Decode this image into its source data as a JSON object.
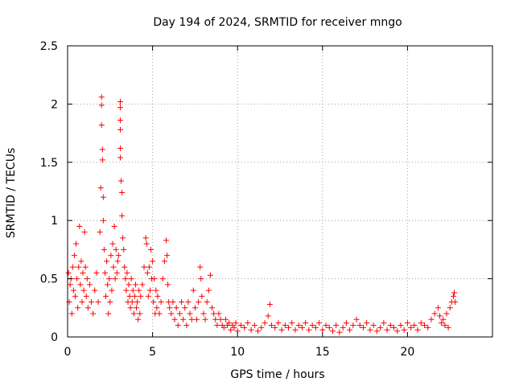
{
  "chart_data": {
    "type": "scatter",
    "title": "Day 194 of 2024, SRMTID for receiver mngo",
    "xlabel": "GPS time / hours",
    "ylabel": "SRMTID / TECUs",
    "xlim": [
      0,
      25
    ],
    "ylim": [
      0,
      2.5
    ],
    "xticks": [
      0,
      5,
      10,
      15,
      20
    ],
    "xtick_labels": [
      "0",
      "5",
      "10",
      "15",
      "20"
    ],
    "yticks": [
      0,
      0.5,
      1,
      1.5,
      2,
      2.5
    ],
    "ytick_labels": [
      "0",
      "0.5",
      "1",
      "1.5",
      "2",
      "2.5"
    ],
    "grid": true,
    "marker": "+",
    "color": "#ff0000",
    "series": [
      {
        "name": "SRMTID",
        "points": [
          [
            0.05,
            0.55
          ],
          [
            0.1,
            0.3
          ],
          [
            0.15,
            0.45
          ],
          [
            0.2,
            0.5
          ],
          [
            0.25,
            0.2
          ],
          [
            0.3,
            0.6
          ],
          [
            0.35,
            0.4
          ],
          [
            0.4,
            0.7
          ],
          [
            0.45,
            0.35
          ],
          [
            0.5,
            0.8
          ],
          [
            0.55,
            0.5
          ],
          [
            0.6,
            0.25
          ],
          [
            0.65,
            0.6
          ],
          [
            0.7,
            0.95
          ],
          [
            0.75,
            0.45
          ],
          [
            0.8,
            0.65
          ],
          [
            0.85,
            0.3
          ],
          [
            0.9,
            0.55
          ],
          [
            0.95,
            0.4
          ],
          [
            1.0,
            0.9
          ],
          [
            1.05,
            0.6
          ],
          [
            1.1,
            0.35
          ],
          [
            1.15,
            0.5
          ],
          [
            1.2,
            0.25
          ],
          [
            1.3,
            0.45
          ],
          [
            1.4,
            0.3
          ],
          [
            1.5,
            0.2
          ],
          [
            1.6,
            0.4
          ],
          [
            1.7,
            0.55
          ],
          [
            1.8,
            0.3
          ],
          [
            1.9,
            0.9
          ],
          [
            1.95,
            1.28
          ],
          [
            2.0,
            1.82
          ],
          [
            2.0,
            2.06
          ],
          [
            2.0,
            1.99
          ],
          [
            2.05,
            1.61
          ],
          [
            2.05,
            1.52
          ],
          [
            2.1,
            1.2
          ],
          [
            2.1,
            1.0
          ],
          [
            2.15,
            0.75
          ],
          [
            2.2,
            0.55
          ],
          [
            2.25,
            0.35
          ],
          [
            2.3,
            0.65
          ],
          [
            2.35,
            0.45
          ],
          [
            2.4,
            0.2
          ],
          [
            2.45,
            0.5
          ],
          [
            2.5,
            0.3
          ],
          [
            2.55,
            0.7
          ],
          [
            2.6,
            0.4
          ],
          [
            2.65,
            0.8
          ],
          [
            2.7,
            0.6
          ],
          [
            2.75,
            0.95
          ],
          [
            2.8,
            0.5
          ],
          [
            2.85,
            0.75
          ],
          [
            2.9,
            0.55
          ],
          [
            2.95,
            0.65
          ],
          [
            3.0,
            0.7
          ],
          [
            3.1,
            2.02
          ],
          [
            3.1,
            1.97
          ],
          [
            3.1,
            1.86
          ],
          [
            3.1,
            1.78
          ],
          [
            3.1,
            1.62
          ],
          [
            3.1,
            1.54
          ],
          [
            3.15,
            1.34
          ],
          [
            3.2,
            1.24
          ],
          [
            3.2,
            1.04
          ],
          [
            3.25,
            0.85
          ],
          [
            3.3,
            0.75
          ],
          [
            3.35,
            0.6
          ],
          [
            3.4,
            0.5
          ],
          [
            3.45,
            0.4
          ],
          [
            3.5,
            0.55
          ],
          [
            3.55,
            0.3
          ],
          [
            3.6,
            0.45
          ],
          [
            3.65,
            0.35
          ],
          [
            3.7,
            0.25
          ],
          [
            3.75,
            0.5
          ],
          [
            3.8,
            0.3
          ],
          [
            3.85,
            0.4
          ],
          [
            3.9,
            0.2
          ],
          [
            3.95,
            0.35
          ],
          [
            4.0,
            0.45
          ],
          [
            4.05,
            0.25
          ],
          [
            4.1,
            0.3
          ],
          [
            4.15,
            0.15
          ],
          [
            4.2,
            0.4
          ],
          [
            4.25,
            0.2
          ],
          [
            4.3,
            0.35
          ],
          [
            4.4,
            0.45
          ],
          [
            4.5,
            0.6
          ],
          [
            4.6,
            0.85
          ],
          [
            4.65,
            0.8
          ],
          [
            4.7,
            0.55
          ],
          [
            4.75,
            0.35
          ],
          [
            4.8,
            0.6
          ],
          [
            4.85,
            0.4
          ],
          [
            4.9,
            0.75
          ],
          [
            4.95,
            0.5
          ],
          [
            5.0,
            0.65
          ],
          [
            5.05,
            0.3
          ],
          [
            5.1,
            0.5
          ],
          [
            5.15,
            0.2
          ],
          [
            5.2,
            0.4
          ],
          [
            5.25,
            0.25
          ],
          [
            5.3,
            0.35
          ],
          [
            5.4,
            0.2
          ],
          [
            5.5,
            0.3
          ],
          [
            5.6,
            0.5
          ],
          [
            5.7,
            0.65
          ],
          [
            5.8,
            0.83
          ],
          [
            5.85,
            0.7
          ],
          [
            5.9,
            0.45
          ],
          [
            5.95,
            0.3
          ],
          [
            6.0,
            0.25
          ],
          [
            6.1,
            0.2
          ],
          [
            6.2,
            0.3
          ],
          [
            6.3,
            0.15
          ],
          [
            6.4,
            0.25
          ],
          [
            6.5,
            0.1
          ],
          [
            6.6,
            0.2
          ],
          [
            6.7,
            0.3
          ],
          [
            6.8,
            0.15
          ],
          [
            6.9,
            0.25
          ],
          [
            7.0,
            0.1
          ],
          [
            7.1,
            0.3
          ],
          [
            7.2,
            0.2
          ],
          [
            7.3,
            0.15
          ],
          [
            7.4,
            0.4
          ],
          [
            7.5,
            0.25
          ],
          [
            7.6,
            0.15
          ],
          [
            7.7,
            0.3
          ],
          [
            7.8,
            0.6
          ],
          [
            7.85,
            0.5
          ],
          [
            7.9,
            0.35
          ],
          [
            8.0,
            0.2
          ],
          [
            8.1,
            0.15
          ],
          [
            8.2,
            0.3
          ],
          [
            8.3,
            0.4
          ],
          [
            8.4,
            0.53
          ],
          [
            8.5,
            0.25
          ],
          [
            8.6,
            0.2
          ],
          [
            8.7,
            0.15
          ],
          [
            8.8,
            0.1
          ],
          [
            8.9,
            0.2
          ],
          [
            9.0,
            0.15
          ],
          [
            9.1,
            0.1
          ],
          [
            9.2,
            0.08
          ],
          [
            9.3,
            0.15
          ],
          [
            9.4,
            0.1
          ],
          [
            9.5,
            0.12
          ],
          [
            9.6,
            0.06
          ],
          [
            9.7,
            0.1
          ],
          [
            9.8,
            0.08
          ],
          [
            9.9,
            0.12
          ],
          [
            10.0,
            0.05
          ],
          [
            10.2,
            0.1
          ],
          [
            10.4,
            0.08
          ],
          [
            10.6,
            0.12
          ],
          [
            10.8,
            0.06
          ],
          [
            11.0,
            0.1
          ],
          [
            11.2,
            0.05
          ],
          [
            11.4,
            0.08
          ],
          [
            11.6,
            0.12
          ],
          [
            11.8,
            0.18
          ],
          [
            11.9,
            0.28
          ],
          [
            12.0,
            0.1
          ],
          [
            12.2,
            0.08
          ],
          [
            12.4,
            0.12
          ],
          [
            12.6,
            0.06
          ],
          [
            12.8,
            0.1
          ],
          [
            13.0,
            0.08
          ],
          [
            13.2,
            0.12
          ],
          [
            13.4,
            0.06
          ],
          [
            13.6,
            0.1
          ],
          [
            13.8,
            0.08
          ],
          [
            14.0,
            0.12
          ],
          [
            14.2,
            0.06
          ],
          [
            14.4,
            0.1
          ],
          [
            14.6,
            0.08
          ],
          [
            14.8,
            0.12
          ],
          [
            15.0,
            0.06
          ],
          [
            15.2,
            0.1
          ],
          [
            15.4,
            0.08
          ],
          [
            15.6,
            0.05
          ],
          [
            15.8,
            0.1
          ],
          [
            16.0,
            0.04
          ],
          [
            16.2,
            0.08
          ],
          [
            16.4,
            0.12
          ],
          [
            16.6,
            0.06
          ],
          [
            16.8,
            0.1
          ],
          [
            17.0,
            0.15
          ],
          [
            17.2,
            0.1
          ],
          [
            17.4,
            0.08
          ],
          [
            17.6,
            0.12
          ],
          [
            17.8,
            0.06
          ],
          [
            18.0,
            0.1
          ],
          [
            18.2,
            0.05
          ],
          [
            18.4,
            0.08
          ],
          [
            18.6,
            0.12
          ],
          [
            18.8,
            0.06
          ],
          [
            19.0,
            0.1
          ],
          [
            19.2,
            0.08
          ],
          [
            19.4,
            0.05
          ],
          [
            19.6,
            0.1
          ],
          [
            19.8,
            0.06
          ],
          [
            20.0,
            0.12
          ],
          [
            20.2,
            0.08
          ],
          [
            20.4,
            0.1
          ],
          [
            20.6,
            0.06
          ],
          [
            20.8,
            0.12
          ],
          [
            21.0,
            0.1
          ],
          [
            21.2,
            0.08
          ],
          [
            21.4,
            0.15
          ],
          [
            21.6,
            0.2
          ],
          [
            21.8,
            0.25
          ],
          [
            21.9,
            0.18
          ],
          [
            22.0,
            0.12
          ],
          [
            22.1,
            0.15
          ],
          [
            22.2,
            0.1
          ],
          [
            22.3,
            0.2
          ],
          [
            22.4,
            0.08
          ],
          [
            22.5,
            0.25
          ],
          [
            22.6,
            0.3
          ],
          [
            22.7,
            0.35
          ],
          [
            22.75,
            0.38
          ],
          [
            22.8,
            0.3
          ]
        ]
      }
    ]
  }
}
